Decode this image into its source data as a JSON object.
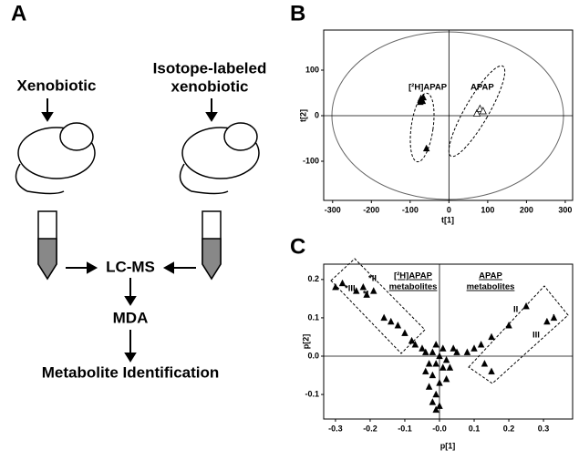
{
  "diagram": {
    "panel": "A",
    "left_input": "Xenobiotic",
    "right_input": [
      "Isotope-labeled",
      "xenobiotic"
    ],
    "instrument": "LC-MS",
    "analysis": "MDA",
    "result": "Metabolite Identification"
  },
  "chart_data": [
    {
      "type": "scatter",
      "panel": "B",
      "xlabel": "t[1]",
      "ylabel": "t[2]",
      "xlim": [
        -323,
        319
      ],
      "ylim": [
        -186,
        188
      ],
      "xticks": [
        -300,
        -200,
        -100,
        0,
        100,
        200,
        300
      ],
      "yticks": [
        100,
        0,
        -100
      ],
      "annotations": [
        "[²H]APAP",
        "APAP"
      ],
      "series": [
        {
          "color": "#000000",
          "marker": "filled-triangle",
          "x": [
            -72,
            -70,
            -68,
            -74,
            -66,
            -58
          ],
          "y": [
            38,
            35,
            32,
            30,
            40,
            -72
          ]
        },
        {
          "color": "#000000",
          "marker": "open-triangle",
          "x": [
            72,
            80,
            88
          ],
          "y": [
            5,
            15,
            10
          ]
        }
      ]
    },
    {
      "type": "scatter",
      "panel": "C",
      "xlabel": "p[1]",
      "ylabel": "p[2]",
      "xlim": [
        -0.334,
        0.384
      ],
      "ylim": [
        -0.164,
        0.24
      ],
      "xticks": [
        -0.3,
        -0.2,
        -0.1,
        {
          "value": 0,
          "label": "-0.0"
        },
        0.1,
        0.2,
        0.3
      ],
      "yticks": [
        0.2,
        0.1,
        {
          "value": 0,
          "label": "0.0"
        },
        -0.1
      ],
      "annotations": [
        "[²H]APAP",
        "metabolites",
        "APAP",
        "metabolites",
        "*III",
        "*II",
        "*I",
        "II",
        "I",
        "III"
      ],
      "series": [
        {
          "color": "#000000",
          "marker": "filled-triangle",
          "x": [
            -0.3,
            -0.28,
            -0.24,
            -0.22,
            -0.21,
            -0.19,
            -0.16,
            -0.14,
            -0.12,
            -0.1,
            -0.08,
            -0.07,
            -0.05,
            -0.04,
            0.33,
            0.31,
            0.25,
            0.2,
            0.15,
            0.12,
            0.1,
            0.08,
            0.15,
            0.13,
            0.05,
            0.04,
            0,
            -0.01,
            0.01,
            -0.02,
            0,
            -0.01,
            -0.02,
            -0.01,
            0,
            -0.03,
            0.02,
            -0.02,
            -0.01,
            0.01,
            -0.03,
            0.02,
            -0.04,
            0.03
          ],
          "y": [
            0.18,
            0.19,
            0.17,
            0.18,
            0.16,
            0.17,
            0.1,
            0.09,
            0.08,
            0.06,
            0.04,
            0.03,
            0.02,
            0.01,
            0.1,
            0.09,
            0.13,
            0.08,
            0.05,
            0.03,
            0.02,
            0.01,
            -0.04,
            -0.02,
            0.01,
            0.02,
            0,
            -0.02,
            -0.03,
            -0.05,
            -0.07,
            -0.1,
            -0.12,
            -0.14,
            -0.13,
            -0.08,
            -0.01,
            0.01,
            0.03,
            0.02,
            -0.02,
            -0.06,
            -0.04,
            -0.03
          ]
        }
      ]
    }
  ]
}
